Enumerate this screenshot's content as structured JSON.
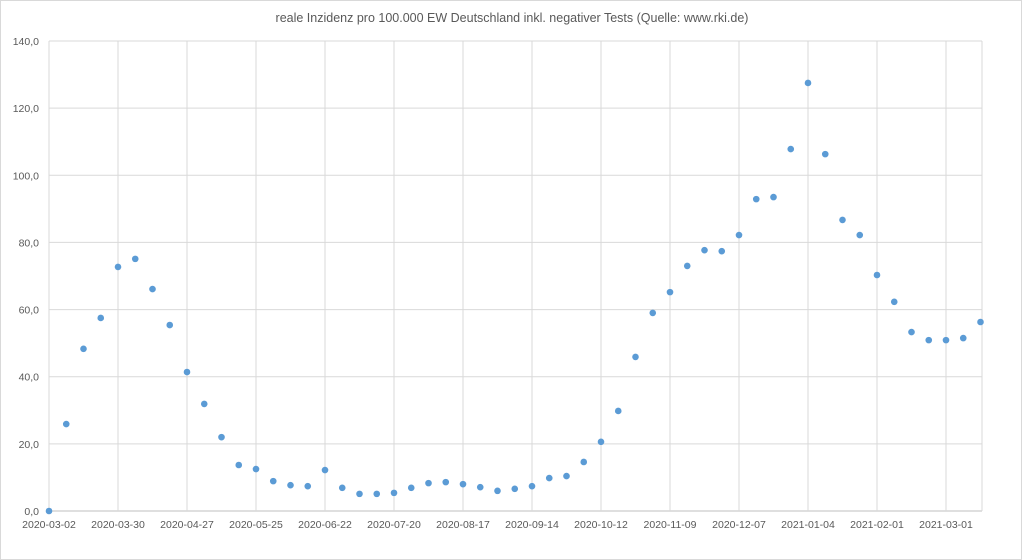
{
  "chart_data": {
    "type": "scatter",
    "title": "reale Inzidenz pro 100.000 EW Deutschland inkl. negativer Tests (Quelle: www.rki.de)",
    "xlabel": "",
    "ylabel": "",
    "x_start": "2020-03-02",
    "x_step_days": 7,
    "x_tick_labels": [
      "2020-03-02",
      "2020-03-30",
      "2020-04-27",
      "2020-05-25",
      "2020-06-22",
      "2020-07-20",
      "2020-08-17",
      "2020-09-14",
      "2020-10-12",
      "2020-11-09",
      "2020-12-07",
      "2021-01-04",
      "2021-02-01",
      "2021-03-01"
    ],
    "y_tick_labels": [
      "0,0",
      "20,0",
      "40,0",
      "60,0",
      "80,0",
      "100,0",
      "120,0",
      "140,0"
    ],
    "ylim": [
      0,
      140
    ],
    "grid": true,
    "marker_color": "#5b9bd5",
    "values": [
      0,
      25.9,
      48.3,
      57.5,
      72.7,
      75.1,
      66.1,
      55.4,
      41.4,
      31.9,
      22.0,
      13.7,
      12.5,
      8.9,
      7.7,
      7.4,
      12.2,
      6.9,
      5.1,
      5.1,
      5.4,
      6.9,
      8.3,
      8.6,
      8.0,
      7.1,
      6.0,
      6.6,
      7.4,
      9.8,
      10.4,
      14.6,
      20.6,
      29.8,
      45.9,
      59.0,
      65.2,
      73.0,
      77.7,
      77.4,
      82.2,
      92.9,
      93.5,
      107.8,
      127.5,
      106.3,
      86.7,
      82.2,
      70.3,
      62.3,
      53.3,
      50.9,
      50.9,
      51.5,
      56.3
    ]
  }
}
